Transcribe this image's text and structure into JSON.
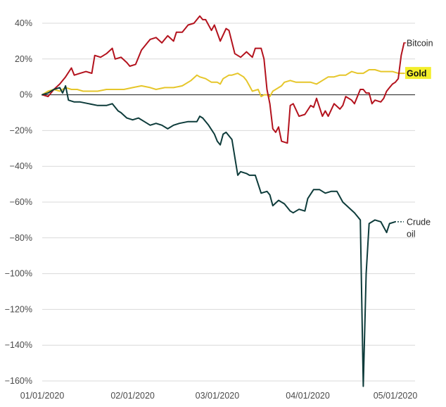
{
  "chart_data": {
    "type": "line",
    "title": "",
    "xlabel": "",
    "ylabel": "",
    "x_range": [
      "2020-01-01",
      "2020-05-01"
    ],
    "ylim": [
      -165,
      45
    ],
    "y_ticks": [
      40,
      20,
      0,
      -20,
      -40,
      -60,
      -80,
      -100,
      -120,
      -140,
      -160
    ],
    "y_tick_labels": [
      "40%",
      "20%",
      "0%",
      "−20%",
      "−40%",
      "−60%",
      "−80%",
      "−100%",
      "−120%",
      "−140%",
      "−160%"
    ],
    "x_ticks": [
      "2020-01-01",
      "2020-02-01",
      "2020-03-01",
      "2020-04-01",
      "2020-05-01"
    ],
    "x_tick_labels": [
      "01/01/2020",
      "02/01/2020",
      "03/01/2020",
      "04/01/2020",
      "05/01/2020"
    ],
    "grid": "horizontal",
    "legend": "labels at line ends (right)",
    "series": [
      {
        "name": "Bitcoin",
        "label_lines": [
          "Bitcoin"
        ],
        "label_style": "plain",
        "color": "#b3121d",
        "points": [
          [
            "2020-01-01",
            0
          ],
          [
            "2020-01-03",
            -1
          ],
          [
            "2020-01-05",
            3
          ],
          [
            "2020-01-07",
            6
          ],
          [
            "2020-01-09",
            10
          ],
          [
            "2020-01-11",
            15
          ],
          [
            "2020-01-12",
            11
          ],
          [
            "2020-01-14",
            12
          ],
          [
            "2020-01-16",
            13
          ],
          [
            "2020-01-18",
            12
          ],
          [
            "2020-01-19",
            22
          ],
          [
            "2020-01-21",
            21
          ],
          [
            "2020-01-23",
            23
          ],
          [
            "2020-01-25",
            26
          ],
          [
            "2020-01-26",
            20
          ],
          [
            "2020-01-28",
            21
          ],
          [
            "2020-01-30",
            18
          ],
          [
            "2020-01-31",
            16
          ],
          [
            "2020-02-02",
            17
          ],
          [
            "2020-02-04",
            25
          ],
          [
            "2020-02-06",
            29
          ],
          [
            "2020-02-07",
            31
          ],
          [
            "2020-02-09",
            32
          ],
          [
            "2020-02-11",
            29
          ],
          [
            "2020-02-13",
            33
          ],
          [
            "2020-02-15",
            30
          ],
          [
            "2020-02-16",
            35
          ],
          [
            "2020-02-18",
            35
          ],
          [
            "2020-02-20",
            39
          ],
          [
            "2020-02-22",
            40
          ],
          [
            "2020-02-24",
            44
          ],
          [
            "2020-02-25",
            42
          ],
          [
            "2020-02-26",
            42
          ],
          [
            "2020-02-28",
            36
          ],
          [
            "2020-02-29",
            39
          ],
          [
            "2020-03-02",
            30
          ],
          [
            "2020-03-04",
            37
          ],
          [
            "2020-03-05",
            36
          ],
          [
            "2020-03-07",
            23
          ],
          [
            "2020-03-09",
            21
          ],
          [
            "2020-03-11",
            24
          ],
          [
            "2020-03-13",
            21
          ],
          [
            "2020-03-14",
            26
          ],
          [
            "2020-03-16",
            26
          ],
          [
            "2020-03-17",
            20
          ],
          [
            "2020-03-18",
            3
          ],
          [
            "2020-03-19",
            -5
          ],
          [
            "2020-03-20",
            -19
          ],
          [
            "2020-03-21",
            -21
          ],
          [
            "2020-03-22",
            -18
          ],
          [
            "2020-03-23",
            -26
          ],
          [
            "2020-03-25",
            -27
          ],
          [
            "2020-03-26",
            -6
          ],
          [
            "2020-03-27",
            -5
          ],
          [
            "2020-03-29",
            -12
          ],
          [
            "2020-03-31",
            -11
          ],
          [
            "2020-04-02",
            -6
          ],
          [
            "2020-04-03",
            -7
          ],
          [
            "2020-04-04",
            -2
          ],
          [
            "2020-04-06",
            -12
          ],
          [
            "2020-04-07",
            -9
          ],
          [
            "2020-04-08",
            -12
          ],
          [
            "2020-04-10",
            -5
          ],
          [
            "2020-04-12",
            -8
          ],
          [
            "2020-04-13",
            -6
          ],
          [
            "2020-04-14",
            -1
          ],
          [
            "2020-04-16",
            -3
          ],
          [
            "2020-04-17",
            -5
          ],
          [
            "2020-04-19",
            3
          ],
          [
            "2020-04-20",
            3
          ],
          [
            "2020-04-21",
            1
          ],
          [
            "2020-04-22",
            1
          ],
          [
            "2020-04-23",
            -5
          ],
          [
            "2020-04-24",
            -3
          ],
          [
            "2020-04-26",
            -4
          ],
          [
            "2020-04-27",
            -2
          ],
          [
            "2020-04-28",
            2
          ],
          [
            "2020-04-29",
            4
          ],
          [
            "2020-04-30",
            6
          ],
          [
            "2020-05-01",
            7
          ],
          [
            "2020-05-02",
            9
          ],
          [
            "2020-05-03",
            22
          ],
          [
            "2020-05-04",
            29
          ]
        ]
      },
      {
        "name": "Gold",
        "label_lines": [
          "Gold"
        ],
        "label_style": "highlight",
        "color": "#e6c62a",
        "points": [
          [
            "2020-01-01",
            0
          ],
          [
            "2020-01-03",
            2
          ],
          [
            "2020-01-05",
            3
          ],
          [
            "2020-01-07",
            2
          ],
          [
            "2020-01-09",
            4
          ],
          [
            "2020-01-11",
            3
          ],
          [
            "2020-01-13",
            3
          ],
          [
            "2020-01-15",
            2
          ],
          [
            "2020-01-17",
            2
          ],
          [
            "2020-01-20",
            2
          ],
          [
            "2020-01-23",
            3
          ],
          [
            "2020-01-26",
            3
          ],
          [
            "2020-01-29",
            3
          ],
          [
            "2020-02-01",
            4
          ],
          [
            "2020-02-04",
            5
          ],
          [
            "2020-02-07",
            4
          ],
          [
            "2020-02-09",
            3
          ],
          [
            "2020-02-12",
            4
          ],
          [
            "2020-02-15",
            4
          ],
          [
            "2020-02-18",
            5
          ],
          [
            "2020-02-21",
            8
          ],
          [
            "2020-02-23",
            11
          ],
          [
            "2020-02-24",
            10
          ],
          [
            "2020-02-26",
            9
          ],
          [
            "2020-02-28",
            7
          ],
          [
            "2020-03-01",
            7
          ],
          [
            "2020-03-02",
            6
          ],
          [
            "2020-03-03",
            9
          ],
          [
            "2020-03-04",
            10
          ],
          [
            "2020-03-05",
            11
          ],
          [
            "2020-03-06",
            11
          ],
          [
            "2020-03-08",
            12
          ],
          [
            "2020-03-09",
            11
          ],
          [
            "2020-03-10",
            10
          ],
          [
            "2020-03-11",
            8
          ],
          [
            "2020-03-12",
            5
          ],
          [
            "2020-03-13",
            2
          ],
          [
            "2020-03-15",
            3
          ],
          [
            "2020-03-16",
            -1
          ],
          [
            "2020-03-17",
            0
          ],
          [
            "2020-03-18",
            0
          ],
          [
            "2020-03-19",
            -1
          ],
          [
            "2020-03-20",
            2
          ],
          [
            "2020-03-23",
            5
          ],
          [
            "2020-03-24",
            7
          ],
          [
            "2020-03-26",
            8
          ],
          [
            "2020-03-28",
            7
          ],
          [
            "2020-03-30",
            7
          ],
          [
            "2020-04-02",
            7
          ],
          [
            "2020-04-04",
            6
          ],
          [
            "2020-04-06",
            8
          ],
          [
            "2020-04-08",
            10
          ],
          [
            "2020-04-10",
            10
          ],
          [
            "2020-04-12",
            11
          ],
          [
            "2020-04-14",
            11
          ],
          [
            "2020-04-16",
            13
          ],
          [
            "2020-04-18",
            12
          ],
          [
            "2020-04-20",
            12
          ],
          [
            "2020-04-22",
            14
          ],
          [
            "2020-04-24",
            14
          ],
          [
            "2020-04-26",
            13
          ],
          [
            "2020-04-28",
            13
          ],
          [
            "2020-04-30",
            13
          ],
          [
            "2020-05-02",
            12
          ],
          [
            "2020-05-04",
            12
          ]
        ]
      },
      {
        "name": "Crude oil",
        "label_lines": [
          "Crude",
          "oil"
        ],
        "label_style": "plain",
        "color": "#0d3b3a",
        "points": [
          [
            "2020-01-01",
            0
          ],
          [
            "2020-01-03",
            1
          ],
          [
            "2020-01-05",
            3
          ],
          [
            "2020-01-07",
            4
          ],
          [
            "2020-01-08",
            1
          ],
          [
            "2020-01-09",
            5
          ],
          [
            "2020-01-10",
            -3
          ],
          [
            "2020-01-12",
            -4
          ],
          [
            "2020-01-14",
            -4
          ],
          [
            "2020-01-17",
            -5
          ],
          [
            "2020-01-20",
            -6
          ],
          [
            "2020-01-23",
            -6
          ],
          [
            "2020-01-25",
            -5
          ],
          [
            "2020-01-27",
            -9
          ],
          [
            "2020-01-28",
            -10
          ],
          [
            "2020-01-30",
            -13
          ],
          [
            "2020-02-01",
            -14
          ],
          [
            "2020-02-03",
            -13
          ],
          [
            "2020-02-05",
            -15
          ],
          [
            "2020-02-07",
            -17
          ],
          [
            "2020-02-09",
            -16
          ],
          [
            "2020-02-11",
            -17
          ],
          [
            "2020-02-13",
            -19
          ],
          [
            "2020-02-15",
            -17
          ],
          [
            "2020-02-17",
            -16
          ],
          [
            "2020-02-20",
            -15
          ],
          [
            "2020-02-23",
            -15
          ],
          [
            "2020-02-24",
            -12
          ],
          [
            "2020-02-25",
            -13
          ],
          [
            "2020-02-27",
            -17
          ],
          [
            "2020-02-29",
            -22
          ],
          [
            "2020-03-01",
            -26
          ],
          [
            "2020-03-02",
            -28
          ],
          [
            "2020-03-03",
            -22
          ],
          [
            "2020-03-04",
            -21
          ],
          [
            "2020-03-06",
            -25
          ],
          [
            "2020-03-08",
            -45
          ],
          [
            "2020-03-09",
            -43
          ],
          [
            "2020-03-11",
            -44
          ],
          [
            "2020-03-12",
            -45
          ],
          [
            "2020-03-14",
            -45
          ],
          [
            "2020-03-16",
            -55
          ],
          [
            "2020-03-18",
            -54
          ],
          [
            "2020-03-19",
            -56
          ],
          [
            "2020-03-20",
            -62
          ],
          [
            "2020-03-22",
            -59
          ],
          [
            "2020-03-24",
            -61
          ],
          [
            "2020-03-26",
            -65
          ],
          [
            "2020-03-27",
            -66
          ],
          [
            "2020-03-28",
            -65
          ],
          [
            "2020-03-29",
            -64
          ],
          [
            "2020-03-31",
            -65
          ],
          [
            "2020-04-01",
            -58
          ],
          [
            "2020-04-03",
            -53
          ],
          [
            "2020-04-05",
            -53
          ],
          [
            "2020-04-07",
            -55
          ],
          [
            "2020-04-09",
            -54
          ],
          [
            "2020-04-11",
            -54
          ],
          [
            "2020-04-13",
            -60
          ],
          [
            "2020-04-15",
            -63
          ],
          [
            "2020-04-17",
            -66
          ],
          [
            "2020-04-19",
            -70
          ],
          [
            "2020-04-20",
            -163
          ],
          [
            "2020-04-21",
            -100
          ],
          [
            "2020-04-22",
            -72
          ],
          [
            "2020-04-24",
            -70
          ],
          [
            "2020-04-26",
            -71
          ],
          [
            "2020-04-28",
            -77
          ],
          [
            "2020-04-29",
            -72
          ],
          [
            "2020-05-01",
            -71
          ]
        ]
      }
    ]
  },
  "colors": {
    "grid": "#d9d9d9",
    "zero_line": "#1a1a1a",
    "gold_highlight": "#f3ee2b"
  }
}
